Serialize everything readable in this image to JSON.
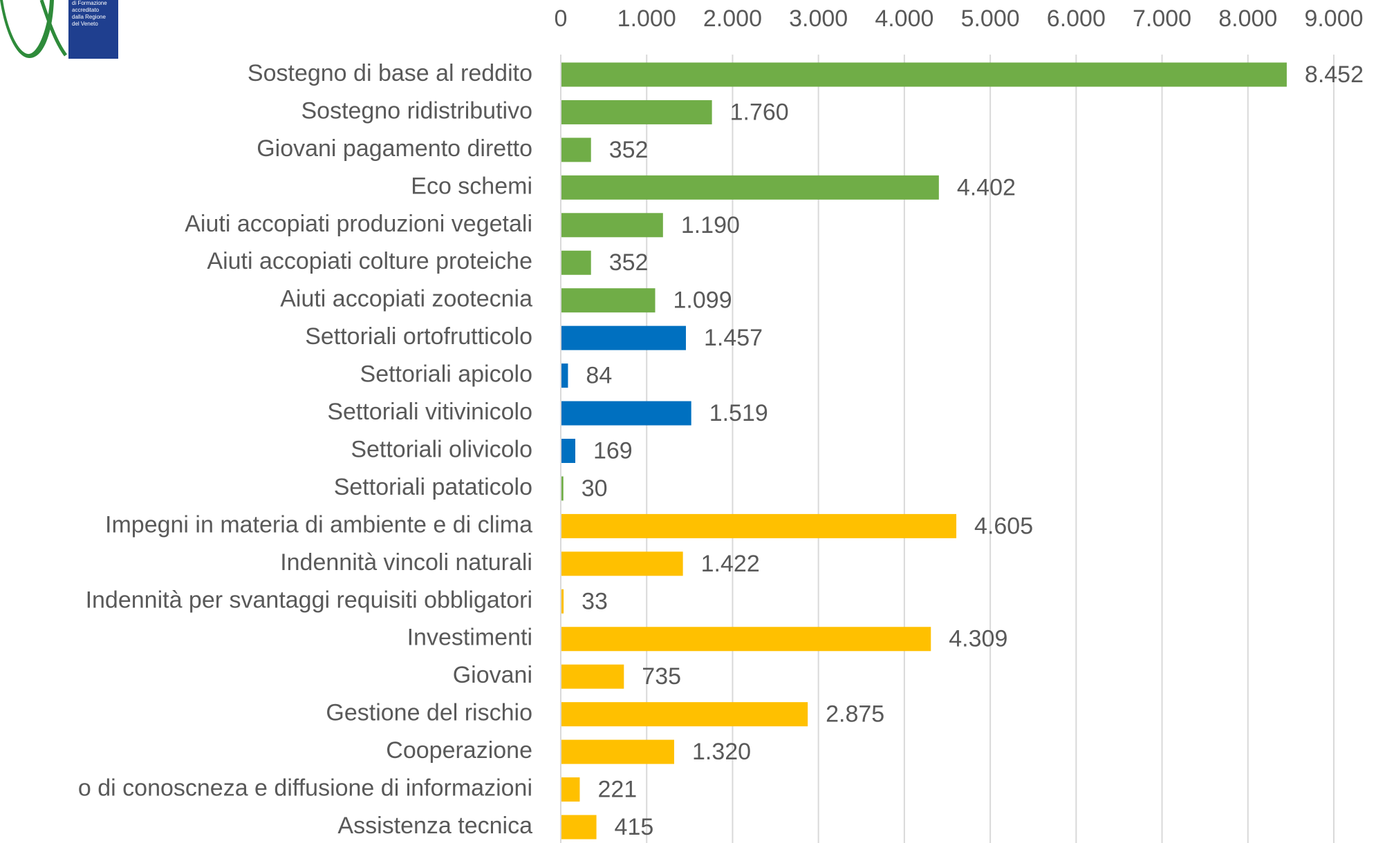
{
  "chart_data": {
    "type": "hbar",
    "logo_text": [
      "di Formazione",
      "accreditato",
      "dalla Regione",
      "del Veneto"
    ],
    "categories": [
      "Sostegno di base al reddito",
      "Sostegno ridistributivo",
      "Giovani pagamento diretto",
      "Eco schemi",
      "Aiuti accopiati produzioni vegetali",
      "Aiuti accopiati colture proteiche",
      "Aiuti accopiati zootecnia",
      "Settoriali ortofrutticolo",
      "Settoriali apicolo",
      "Settoriali vitivinicolo",
      "Settoriali olivicolo",
      "Settoriali pataticolo",
      "Impegni in materia di ambiente e di clima",
      "Indennità vincoli naturali",
      "Indennità per svantaggi requisiti obbligatori",
      "Investimenti",
      "Giovani",
      "Gestione del rischio",
      "Cooperazione",
      "o di conoscneza e diffusione di informazioni",
      "Assistenza tecnica"
    ],
    "values": [
      8452,
      1760,
      352,
      4402,
      1190,
      352,
      1099,
      1457,
      84,
      1519,
      169,
      30,
      4605,
      1422,
      33,
      4309,
      735,
      2875,
      1320,
      221,
      415
    ],
    "value_labels": [
      "8.452",
      "1.760",
      "352",
      "4.402",
      "1.190",
      "352",
      "1.099",
      "1.457",
      "84",
      "1.519",
      "169",
      "30",
      "4.605",
      "1.422",
      "33",
      "4.309",
      "735",
      "2.875",
      "1.320",
      "221",
      "415"
    ],
    "colors": [
      "#70ad47",
      "#70ad47",
      "#70ad47",
      "#70ad47",
      "#70ad47",
      "#70ad47",
      "#70ad47",
      "#0070c0",
      "#0070c0",
      "#0070c0",
      "#0070c0",
      "#70ad47",
      "#ffc000",
      "#ffc000",
      "#ffc000",
      "#ffc000",
      "#ffc000",
      "#ffc000",
      "#ffc000",
      "#ffc000",
      "#ffc000"
    ],
    "xlim": [
      0,
      9000
    ],
    "xticks": [
      0,
      {
        "value": 1000,
        "label": "1.000"
      },
      {
        "value": 2000,
        "label": "2.000"
      },
      {
        "value": 3000,
        "label": "3.000"
      },
      {
        "value": 4000,
        "label": "4.000"
      },
      {
        "value": 5000,
        "label": "5.000"
      },
      {
        "value": 6000,
        "label": "6.000"
      },
      {
        "value": 7000,
        "label": "7.000"
      },
      {
        "value": 8000,
        "label": "8.000"
      },
      {
        "value": 9000,
        "label": "9.000"
      }
    ],
    "grid": true
  }
}
